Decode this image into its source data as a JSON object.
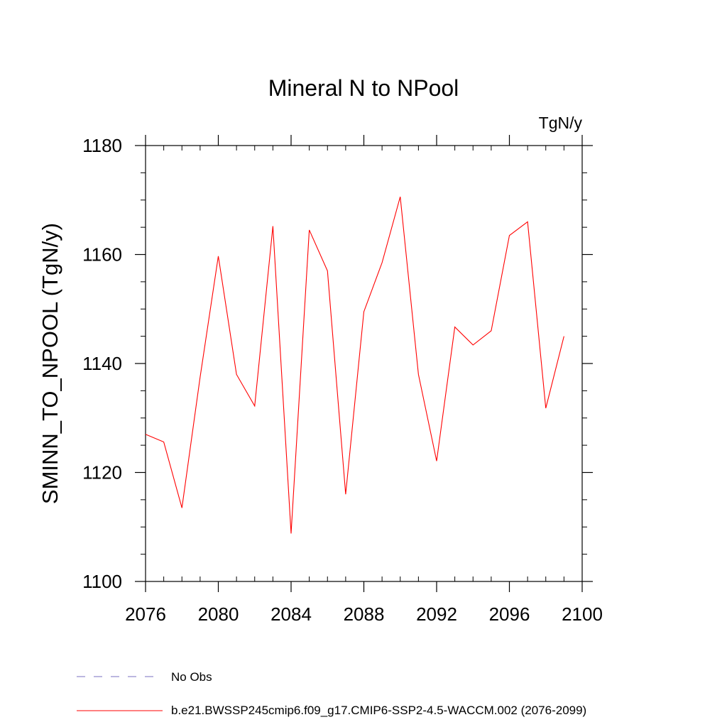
{
  "chart_data": {
    "type": "line",
    "title": "Mineral N to NPool",
    "units": "TgN/y",
    "xlabel": "",
    "ylabel": "SMINN_TO_NPOOL  (TgN/y)",
    "xlim": [
      2076,
      2100
    ],
    "ylim": [
      1100,
      1180
    ],
    "x_ticks": [
      2076,
      2080,
      2084,
      2088,
      2092,
      2096,
      2100
    ],
    "y_ticks": [
      1100,
      1120,
      1140,
      1160,
      1180
    ],
    "x_minor_step": 1,
    "y_minor_step": 5,
    "series": [
      {
        "name": "b.e21.BWSSP245cmip6.f09_g17.CMIP6-SSP2-4.5-WACCM.002 (2076-2099)",
        "color": "#ff0000",
        "x": [
          2076,
          2077,
          2078,
          2079,
          2080,
          2081,
          2082,
          2083,
          2084,
          2085,
          2086,
          2087,
          2088,
          2089,
          2090,
          2091,
          2092,
          2093,
          2094,
          2095,
          2096,
          2097,
          2098,
          2099
        ],
        "values": [
          1127.0,
          1125.6,
          1113.5,
          1137.5,
          1159.7,
          1138.0,
          1132.2,
          1165.2,
          1108.8,
          1164.5,
          1157.0,
          1116.0,
          1149.5,
          1158.5,
          1170.6,
          1138.0,
          1122.1,
          1146.7,
          1143.4,
          1146.0,
          1163.5,
          1166.0,
          1131.8,
          1145.0
        ]
      }
    ],
    "legend": [
      {
        "label": "No Obs",
        "color": "#7a6fc0",
        "style": "dashed"
      },
      {
        "label": "b.e21.BWSSP245cmip6.f09_g17.CMIP6-SSP2-4.5-WACCM.002 (2076-2099)",
        "color": "#ff0000",
        "style": "solid"
      }
    ]
  }
}
